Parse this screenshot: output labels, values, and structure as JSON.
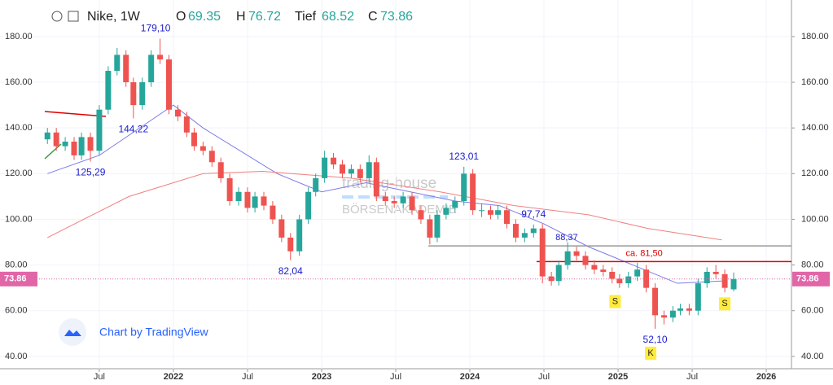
{
  "header": {
    "title": "Nike, 1W",
    "open_label": "O",
    "high_label": "H",
    "low_label": "Tief",
    "close_label": "C"
  },
  "watermark": {
    "line1": "trading-house",
    "line2": "BÖRSENAKADEMIE"
  },
  "footer": "Chart by TradingView",
  "chart_data": {
    "type": "candlestick",
    "up_color": "#26a69a",
    "down_color": "#ef5350",
    "x": [
      2021.15,
      2021.21,
      2021.27,
      2021.33,
      2021.38,
      2021.44,
      2021.5,
      2021.56,
      2021.62,
      2021.68,
      2021.73,
      2021.79,
      2021.85,
      2021.91,
      2021.97,
      2022.03,
      2022.09,
      2022.14,
      2022.2,
      2022.26,
      2022.32,
      2022.38,
      2022.44,
      2022.5,
      2022.55,
      2022.61,
      2022.67,
      2022.73,
      2022.79,
      2022.85,
      2022.91,
      2022.96,
      2023.02,
      2023.08,
      2023.14,
      2023.2,
      2023.26,
      2023.32,
      2023.37,
      2023.43,
      2023.49,
      2023.55,
      2023.61,
      2023.67,
      2023.73,
      2023.78,
      2023.84,
      2023.9,
      2023.96,
      2024.02,
      2024.08,
      2024.14,
      2024.19,
      2024.25,
      2024.31,
      2024.37,
      2024.43,
      2024.49,
      2024.55,
      2024.6,
      2024.66,
      2024.72,
      2024.78,
      2024.84,
      2024.9,
      2024.96,
      2025.01,
      2025.07,
      2025.13,
      2025.19,
      2025.25,
      2025.31,
      2025.37,
      2025.42,
      2025.48,
      2025.54,
      2025.6,
      2025.66,
      2025.72,
      2025.78
    ],
    "open": [
      135,
      138,
      132,
      134,
      128,
      136,
      130,
      148,
      165,
      172,
      160,
      150,
      160,
      172,
      170,
      148,
      145,
      138,
      132,
      130,
      125,
      118,
      108,
      112,
      105,
      110,
      106,
      100,
      92,
      86,
      100,
      112,
      118,
      127,
      124,
      120,
      122,
      118,
      125,
      110,
      108,
      107,
      110,
      104,
      100,
      92,
      102,
      105,
      108,
      120,
      104,
      104,
      102,
      104,
      98,
      92,
      94,
      96,
      75,
      73,
      80,
      86,
      84,
      80,
      78,
      77,
      74,
      72,
      75,
      78,
      70,
      58,
      57,
      60,
      61,
      60,
      72,
      77,
      76,
      69.35
    ],
    "high": [
      140,
      140,
      136,
      136,
      138,
      138,
      150,
      167,
      175,
      174,
      162,
      162,
      174,
      179.1,
      172,
      150,
      147,
      140,
      134,
      132,
      127,
      120,
      114,
      114,
      112,
      112,
      108,
      102,
      94,
      102,
      114,
      120,
      130,
      129,
      126,
      124,
      124,
      128,
      127,
      112,
      110,
      112,
      112,
      106,
      102,
      104,
      107,
      110,
      123.01,
      122,
      107,
      106,
      106,
      106,
      100,
      96,
      97.74,
      98,
      77,
      82,
      90,
      88,
      86,
      82,
      80,
      79,
      76,
      77,
      81,
      80,
      72,
      60,
      62,
      63,
      63,
      74,
      79,
      80,
      78,
      76.72
    ],
    "low": [
      133,
      130,
      130,
      126,
      126,
      125.29,
      128,
      146,
      163,
      158,
      144.22,
      148,
      158,
      168,
      146,
      143,
      136,
      130,
      128,
      123,
      116,
      106,
      106,
      103,
      103,
      104,
      98,
      90,
      82.04,
      84,
      98,
      110,
      116,
      122,
      118,
      118,
      116,
      116,
      108,
      106,
      105,
      105,
      102,
      98,
      89,
      90,
      100,
      103,
      106,
      102,
      101,
      100,
      100,
      96,
      90,
      90,
      92,
      72,
      71,
      71,
      78,
      82,
      78,
      76,
      75,
      72,
      70,
      70,
      73,
      68,
      52.1,
      54,
      55,
      58,
      58,
      58,
      70,
      74,
      68,
      68.52
    ],
    "close": [
      138,
      132,
      134,
      128,
      136,
      130,
      148,
      165,
      172,
      160,
      150,
      160,
      172,
      170,
      148,
      145,
      138,
      132,
      130,
      125,
      118,
      108,
      112,
      105,
      110,
      106,
      100,
      92,
      86,
      100,
      112,
      118,
      127,
      124,
      120,
      122,
      118,
      125,
      110,
      108,
      107,
      110,
      104,
      100,
      92,
      102,
      105,
      108,
      120,
      104,
      104,
      102,
      104,
      98,
      92,
      94,
      96,
      75,
      73,
      80,
      86,
      84,
      80,
      78,
      77,
      74,
      72,
      75,
      78,
      70,
      58,
      57,
      60,
      61,
      60,
      72,
      77,
      76,
      70,
      73.86
    ],
    "lines": [
      {
        "color": "#7b7bea",
        "x": [
          2021.15,
          2021.5,
          2022.0,
          2022.2,
          2022.7,
          2023.0,
          2023.3,
          2023.6,
          2023.9,
          2024.2,
          2024.5,
          2024.8,
          2025.1,
          2025.4,
          2025.7
        ],
        "values": [
          120,
          128,
          150,
          140,
          120,
          112,
          116,
          112,
          108,
          106,
          98,
          88,
          80,
          72,
          73
        ]
      },
      {
        "color": "#f08080",
        "x": [
          2021.15,
          2021.7,
          2022.2,
          2022.6,
          2023.2,
          2023.8,
          2024.3,
          2024.8,
          2025.2,
          2025.7
        ],
        "values": [
          92,
          110,
          120,
          121,
          118,
          112,
          106,
          102,
          96,
          91
        ]
      }
    ],
    "annotations": [
      {
        "text": "179,10",
        "x": 2021.88,
        "value": 179.1
      },
      {
        "text": "144,22",
        "x": 2021.73,
        "value": 144.22
      },
      {
        "text": "125,29",
        "x": 2021.44,
        "value": 125.29
      },
      {
        "text": "82,04",
        "x": 2022.79,
        "value": 82.04
      },
      {
        "text": "123,01",
        "x": 2023.96,
        "value": 123.01
      },
      {
        "text": "97,74",
        "x": 2024.43,
        "value": 97.74
      },
      {
        "text": "52,10",
        "x": 2025.25,
        "value": 52.1
      }
    ],
    "levels": [
      {
        "text": "88,37",
        "x": 2023.72,
        "value": 88.37,
        "color": "#999999"
      },
      {
        "text": "ca. 81,50",
        "x": 2024.45,
        "value": 81.5,
        "color": "#e00000"
      }
    ],
    "markers": [
      {
        "text": "S",
        "x": 2024.98,
        "value": 64
      },
      {
        "text": "K",
        "x": 2025.22,
        "value": 41.4
      },
      {
        "text": "S",
        "x": 2025.72,
        "value": 63
      }
    ],
    "xlim": [
      2020.83,
      2026.17
    ],
    "ylim": [
      34.6,
      196
    ],
    "xticks": [
      {
        "value": 2021.5,
        "label": "Jul"
      },
      2022,
      {
        "value": 2022.5,
        "label": "Jul"
      },
      2023,
      {
        "value": 2023.5,
        "label": "Jul"
      },
      2024,
      {
        "value": 2024.5,
        "label": "Jul"
      },
      2025,
      {
        "value": 2025.5,
        "label": "Jul"
      },
      2026
    ],
    "yticks": [
      {
        "value": 40,
        "label": "40.00"
      },
      {
        "value": 60,
        "label": "60.00"
      },
      {
        "value": 80,
        "label": "80.00"
      },
      {
        "value": 100,
        "label": "100.00"
      },
      {
        "value": 120,
        "label": "120.00"
      },
      {
        "value": 140,
        "label": "140.00"
      },
      {
        "value": 160,
        "label": "160.00"
      },
      {
        "value": 180,
        "label": "180.00"
      }
    ]
  }
}
